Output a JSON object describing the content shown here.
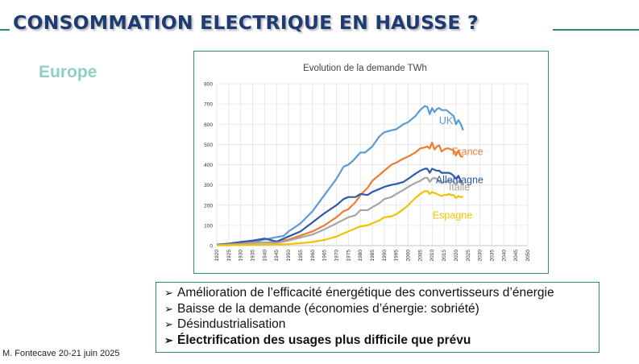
{
  "slide": {
    "title": "CONSOMMATION ELECTRIQUE EN HAUSSE ?",
    "region": "Europe",
    "footer": "M. Fontecave 20-21 juin 2025",
    "accent_color": "#2e8b7a",
    "title_color": "#1f3b73",
    "region_color": "#8fcfc1"
  },
  "bullets": [
    {
      "arrow": "➢",
      "text": "Amélioration de l’efficacité énergétique des convertisseurs d’énergie",
      "bold": false
    },
    {
      "arrow": "➢",
      "text": "Baisse de la demande  (économies d’énergie: sobriété)",
      "bold": false
    },
    {
      "arrow": "➢",
      "text": "Désindustrialisation",
      "bold": false
    },
    {
      "arrow": "➢",
      "text": "Électrification des usages plus difficile que prévu",
      "bold": true
    }
  ],
  "chart_data": {
    "type": "line",
    "title": "Evolution de la demande TWh",
    "xlabel": "",
    "ylabel": "",
    "xlim": [
      1920,
      2050
    ],
    "ylim": [
      0,
      800
    ],
    "yticks": [
      0,
      100,
      200,
      300,
      400,
      500,
      600,
      700,
      800
    ],
    "xticks": [
      1920,
      1925,
      1930,
      1935,
      1940,
      1945,
      1950,
      1955,
      1960,
      1965,
      1970,
      1975,
      1980,
      1985,
      1990,
      1995,
      2000,
      2005,
      2010,
      2015,
      2020,
      2025,
      2030,
      2035,
      2040,
      2045,
      2050
    ],
    "grid": true,
    "series": [
      {
        "name": "UK",
        "color": "#5b9bd5",
        "x": [
          1920,
          1925,
          1930,
          1935,
          1940,
          1945,
          1948,
          1950,
          1955,
          1960,
          1965,
          1970,
          1973,
          1975,
          1977,
          1980,
          1982,
          1985,
          1988,
          1990,
          1993,
          1995,
          1998,
          2000,
          2003,
          2005,
          2007,
          2008,
          2009,
          2010,
          2011,
          2012,
          2013,
          2014,
          2015,
          2016,
          2017,
          2018,
          2019,
          2020,
          2021,
          2022,
          2023
        ],
        "y": [
          3,
          8,
          13,
          18,
          30,
          42,
          48,
          70,
          110,
          170,
          250,
          330,
          390,
          400,
          420,
          460,
          460,
          490,
          540,
          560,
          570,
          575,
          600,
          610,
          640,
          670,
          690,
          685,
          650,
          680,
          660,
          675,
          680,
          670,
          670,
          670,
          660,
          650,
          640,
          600,
          620,
          600,
          570
        ]
      },
      {
        "name": "France",
        "color": "#ed7d31",
        "x": [
          1920,
          1925,
          1930,
          1935,
          1940,
          1945,
          1950,
          1955,
          1960,
          1965,
          1970,
          1973,
          1975,
          1978,
          1980,
          1983,
          1985,
          1988,
          1990,
          1993,
          1995,
          1998,
          2000,
          2003,
          2005,
          2007,
          2008,
          2009,
          2010,
          2011,
          2012,
          2013,
          2014,
          2015,
          2016,
          2017,
          2018,
          2019,
          2020,
          2021,
          2022,
          2023
        ],
        "y": [
          3,
          7,
          12,
          14,
          15,
          18,
          30,
          50,
          70,
          100,
          140,
          170,
          180,
          215,
          250,
          285,
          320,
          350,
          370,
          400,
          410,
          430,
          440,
          460,
          480,
          485,
          490,
          480,
          510,
          475,
          490,
          495,
          465,
          475,
          480,
          480,
          475,
          470,
          445,
          470,
          440,
          440
        ]
      },
      {
        "name": "Allemagne",
        "color": "#2e5aa8",
        "x": [
          1920,
          1925,
          1930,
          1935,
          1940,
          1945,
          1950,
          1955,
          1960,
          1965,
          1970,
          1973,
          1975,
          1978,
          1980,
          1983,
          1985,
          1988,
          1990,
          1993,
          1995,
          1998,
          2000,
          2003,
          2005,
          2007,
          2008,
          2009,
          2010,
          2011,
          2012,
          2013,
          2014,
          2015,
          2016,
          2017,
          2018,
          2019,
          2020,
          2021,
          2022,
          2023
        ],
        "y": [
          5,
          10,
          18,
          25,
          35,
          20,
          45,
          70,
          115,
          160,
          200,
          230,
          240,
          240,
          255,
          250,
          265,
          280,
          290,
          300,
          305,
          315,
          330,
          355,
          370,
          380,
          380,
          360,
          380,
          375,
          370,
          370,
          360,
          360,
          360,
          360,
          355,
          345,
          330,
          345,
          320,
          300
        ]
      },
      {
        "name": "Italie",
        "color": "#a5a5a5",
        "x": [
          1920,
          1925,
          1930,
          1935,
          1940,
          1945,
          1950,
          1955,
          1960,
          1965,
          1970,
          1975,
          1978,
          1980,
          1983,
          1985,
          1988,
          1990,
          1993,
          1995,
          1998,
          2000,
          2003,
          2005,
          2007,
          2008,
          2009,
          2010,
          2011,
          2012,
          2013,
          2014,
          2015,
          2016,
          2017,
          2018,
          2019,
          2020,
          2021,
          2022,
          2023
        ],
        "y": [
          3,
          6,
          9,
          12,
          15,
          14,
          25,
          40,
          55,
          80,
          110,
          140,
          150,
          175,
          175,
          190,
          210,
          230,
          240,
          255,
          275,
          290,
          310,
          320,
          335,
          335,
          315,
          330,
          335,
          330,
          315,
          310,
          315,
          315,
          320,
          320,
          315,
          300,
          320,
          310,
          305
        ]
      },
      {
        "name": "Espagne",
        "color": "#f2c200",
        "x": [
          1920,
          1925,
          1930,
          1935,
          1940,
          1945,
          1950,
          1955,
          1960,
          1965,
          1970,
          1975,
          1978,
          1980,
          1983,
          1985,
          1988,
          1990,
          1993,
          1995,
          1998,
          2000,
          2003,
          2005,
          2007,
          2008,
          2009,
          2010,
          2011,
          2012,
          2013,
          2014,
          2015,
          2016,
          2017,
          2018,
          2019,
          2020,
          2021,
          2022,
          2023
        ],
        "y": [
          1,
          2,
          3,
          4,
          5,
          6,
          7,
          12,
          18,
          28,
          45,
          70,
          85,
          95,
          100,
          110,
          125,
          140,
          145,
          155,
          180,
          200,
          235,
          255,
          270,
          270,
          255,
          265,
          260,
          255,
          250,
          245,
          250,
          250,
          255,
          250,
          250,
          235,
          245,
          240,
          240
        ]
      }
    ]
  }
}
